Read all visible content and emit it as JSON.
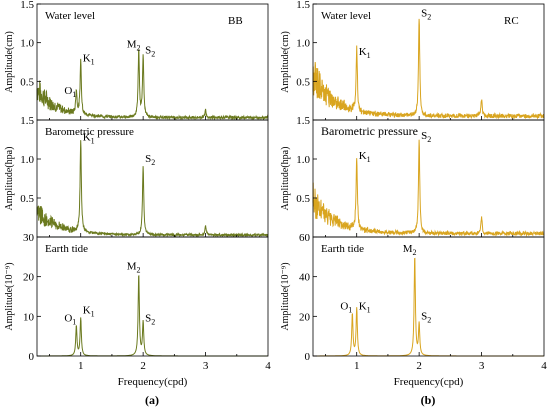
{
  "colors": {
    "col_a": "#6b7a1f",
    "col_b": "#d9a520",
    "axis": "#000000"
  },
  "chart_data": [
    {
      "type": "line",
      "panel": "(a)",
      "tag": "BB",
      "row": 0,
      "title": "Water level",
      "ylabel": "Amplitude(cm)",
      "xlim": [
        0.3,
        4.0
      ],
      "ylim": [
        0.0,
        1.5
      ],
      "yticks": [
        "0.5",
        "1.0",
        "1.5"
      ],
      "ytick_values": [
        0.5,
        1.0,
        1.5
      ],
      "xticks": [],
      "xlabel": "",
      "annotations": [
        {
          "text": "O",
          "sub": "1",
          "x": 0.93,
          "y": 0.3
        },
        {
          "text": "K",
          "sub": "1",
          "x": 1.0,
          "y": 0.72
        },
        {
          "text": "M",
          "sub": "2",
          "x": 1.93,
          "y": 0.9
        },
        {
          "text": "S",
          "sub": "2",
          "x": 2.0,
          "y": 0.82
        }
      ],
      "peaks": [
        [
          0.93,
          0.3
        ],
        [
          1.0,
          0.7
        ],
        [
          1.93,
          0.86
        ],
        [
          2.0,
          0.8
        ],
        [
          3.0,
          0.1
        ]
      ],
      "noise": {
        "base": 0.05,
        "low_amp": 0.55,
        "decay": 0.32
      }
    },
    {
      "type": "line",
      "panel": "(a)",
      "tag": "",
      "row": 1,
      "title": "Barometric pressure",
      "ylabel": "Amplitude(hpa)",
      "xlim": [
        0.3,
        4.0
      ],
      "ylim": [
        0.0,
        1.5
      ],
      "yticks": [
        "0.5",
        "1.0",
        "1.5"
      ],
      "ytick_values": [
        0.5,
        1.0,
        1.5
      ],
      "xticks": [],
      "xlabel": "",
      "annotations": [
        {
          "text": "K",
          "sub": "1",
          "x": 1.0,
          "y": 1.2
        },
        {
          "text": "S",
          "sub": "2",
          "x": 2.0,
          "y": 0.92
        }
      ],
      "peaks": [
        [
          1.0,
          1.17
        ],
        [
          2.0,
          0.88
        ],
        [
          3.0,
          0.12
        ]
      ],
      "noise": {
        "base": 0.04,
        "low_amp": 0.45,
        "decay": 0.35
      }
    },
    {
      "type": "line",
      "panel": "(a)",
      "tag": "",
      "row": 2,
      "title": "Earth tide",
      "ylabel": "Amplitude(10⁻⁹)",
      "xlim": [
        0.3,
        4.0
      ],
      "ylim": [
        0,
        30
      ],
      "yticks": [
        "0",
        "10",
        "20",
        "30"
      ],
      "ytick_values": [
        0,
        10,
        20,
        30
      ],
      "xticks": [
        "1",
        "2",
        "3",
        "4"
      ],
      "xtick_values": [
        1,
        2,
        3,
        4
      ],
      "xlabel": "Frequency(cpd)",
      "annotations": [
        {
          "text": "O",
          "sub": "1",
          "x": 0.93,
          "y": 8
        },
        {
          "text": "K",
          "sub": "1",
          "x": 1.0,
          "y": 10
        },
        {
          "text": "M",
          "sub": "2",
          "x": 1.93,
          "y": 21
        },
        {
          "text": "S",
          "sub": "2",
          "x": 2.0,
          "y": 8
        }
      ],
      "peaks": [
        [
          0.93,
          7.5
        ],
        [
          1.0,
          9.5
        ],
        [
          1.93,
          20.5
        ],
        [
          2.0,
          8.5
        ]
      ],
      "noise": {
        "base": 0.0,
        "low_amp": 0.0,
        "decay": 1
      }
    },
    {
      "type": "line",
      "panel": "(b)",
      "tag": "RC",
      "row": 0,
      "title": "Water level",
      "ylabel": "Amplitude(cm)",
      "xlim": [
        0.3,
        4.0
      ],
      "ylim": [
        0.0,
        1.5
      ],
      "yticks": [
        "0.5",
        "1.0",
        "1.5"
      ],
      "ytick_values": [
        0.5,
        1.0,
        1.5
      ],
      "xticks": [],
      "xlabel": "",
      "annotations": [
        {
          "text": "K",
          "sub": "1",
          "x": 1.0,
          "y": 0.8
        },
        {
          "text": "S",
          "sub": "2",
          "x": 2.0,
          "y": 1.3
        }
      ],
      "peaks": [
        [
          1.0,
          0.8
        ],
        [
          2.0,
          1.27
        ],
        [
          3.0,
          0.22
        ]
      ],
      "noise": {
        "base": 0.08,
        "low_amp": 0.75,
        "decay": 0.35
      }
    },
    {
      "type": "line",
      "panel": "(b)",
      "tag": "",
      "row": 1,
      "title": "Barometric pressure",
      "ylabel": "Amplitude(hpa)",
      "xlim": [
        0.3,
        4.0
      ],
      "ylim": [
        0.0,
        1.5
      ],
      "yticks": [
        "0.5",
        "1.0",
        "1.5"
      ],
      "ytick_values": [
        0.5,
        1.0,
        1.5
      ],
      "xticks": [],
      "xlabel": "",
      "annotations": [
        {
          "text": "K",
          "sub": "1",
          "x": 1.0,
          "y": 0.96
        },
        {
          "text": "S",
          "sub": "2",
          "x": 2.0,
          "y": 1.22
        }
      ],
      "peaks": [
        [
          1.0,
          0.93
        ],
        [
          2.0,
          1.2
        ],
        [
          3.0,
          0.2
        ]
      ],
      "noise": {
        "base": 0.07,
        "low_amp": 0.65,
        "decay": 0.35
      }
    },
    {
      "type": "line",
      "panel": "(b)",
      "tag": "",
      "row": 2,
      "title": "Earth tide",
      "ylabel": "Amplitude(10⁻⁹)",
      "xlim": [
        0.3,
        4.0
      ],
      "ylim": [
        0,
        60
      ],
      "yticks": [
        "0",
        "20",
        "40",
        "60"
      ],
      "ytick_values": [
        0,
        20,
        40,
        60
      ],
      "xticks": [
        "1",
        "2",
        "3",
        "4"
      ],
      "xtick_values": [
        1,
        2,
        3,
        4
      ],
      "xlabel": "Frequency(cpd)",
      "annotations": [
        {
          "text": "O",
          "sub": "1",
          "x": 0.93,
          "y": 22
        },
        {
          "text": "K",
          "sub": "1",
          "x": 1.0,
          "y": 22
        },
        {
          "text": "M",
          "sub": "2",
          "x": 1.93,
          "y": 51
        },
        {
          "text": "S",
          "sub": "2",
          "x": 2.0,
          "y": 17
        }
      ],
      "peaks": [
        [
          0.93,
          21
        ],
        [
          1.0,
          24
        ],
        [
          1.93,
          50
        ],
        [
          2.0,
          16
        ]
      ],
      "noise": {
        "base": 0.0,
        "low_amp": 0.0,
        "decay": 1
      }
    }
  ],
  "panel_labels": [
    "(a)",
    "(b)"
  ]
}
